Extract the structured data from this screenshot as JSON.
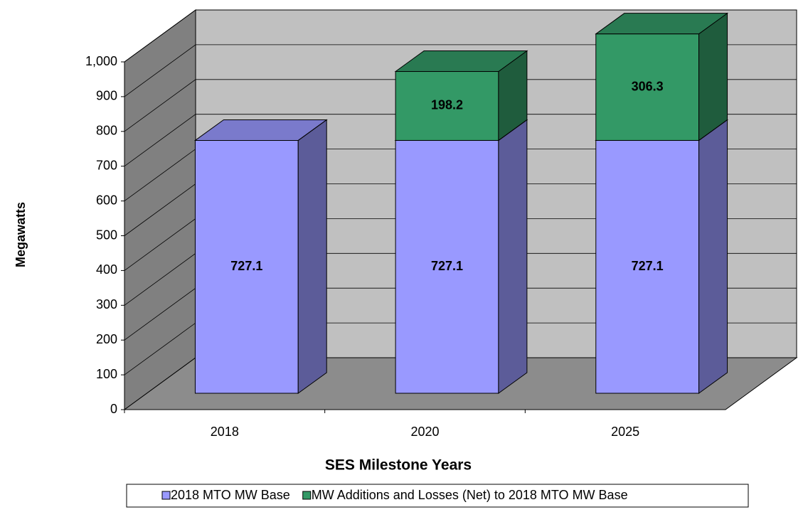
{
  "chart_data": {
    "type": "bar3d_stacked",
    "categories": [
      "2018",
      "2020",
      "2025"
    ],
    "series": [
      {
        "name": "2018 MTO MW Base",
        "color": "#9999FF",
        "values": [
          727.1,
          727.1,
          727.1
        ]
      },
      {
        "name": "MW Additions and Losses (Net) to 2018 MTO MW Base",
        "color": "#339966",
        "values": [
          null,
          198.2,
          306.3
        ]
      }
    ],
    "ylim": [
      0,
      1000
    ],
    "yticks": [
      0,
      100,
      200,
      300,
      400,
      500,
      600,
      700,
      800,
      900,
      {
        "value": 1000,
        "label": "1,000"
      }
    ],
    "ylabel": "Megawatts",
    "xlabel": "SES Milestone Years",
    "grid": true,
    "legend": "bottom"
  }
}
